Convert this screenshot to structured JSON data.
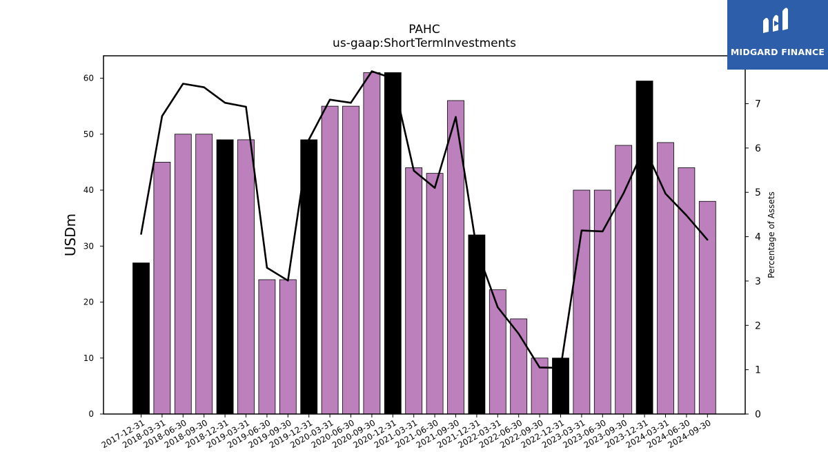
{
  "chart_data": {
    "type": "bar",
    "title": "PAHC",
    "subtitle": "us-gaap:ShortTermInvestments",
    "ylabel": "USDm",
    "y2label": "Percentage of Assets",
    "ylim": [
      0,
      64
    ],
    "y2lim": [
      0,
      8.08
    ],
    "yticks": [
      0,
      10,
      20,
      30,
      40,
      50,
      60
    ],
    "y2ticks": [
      0,
      1,
      2,
      3,
      4,
      5,
      6,
      7
    ],
    "categories": [
      "2017-12-31",
      "2018-03-31",
      "2018-06-30",
      "2018-09-30",
      "2018-12-31",
      "2019-03-31",
      "2019-06-30",
      "2019-09-30",
      "2019-12-31",
      "2020-03-31",
      "2020-06-30",
      "2020-09-30",
      "2020-12-31",
      "2021-03-31",
      "2021-06-30",
      "2021-09-30",
      "2021-12-31",
      "2022-03-31",
      "2022-06-30",
      "2022-09-30",
      "2022-12-31",
      "2023-03-31",
      "2023-06-30",
      "2023-09-30",
      "2023-12-31",
      "2024-03-31",
      "2024-06-30",
      "2024-09-30"
    ],
    "series": [
      {
        "type": "bar",
        "values": [
          27,
          45,
          50,
          50,
          49,
          49,
          24,
          24,
          49,
          55,
          55,
          61,
          61,
          44,
          43,
          56,
          32,
          22.2,
          17,
          10,
          10,
          40,
          40,
          48,
          59.5,
          48.5,
          44,
          38
        ],
        "colors": [
          "#000000",
          "#bc80bd",
          "#bc80bd",
          "#bc80bd",
          "#000000",
          "#bc80bd",
          "#bc80bd",
          "#bc80bd",
          "#000000",
          "#bc80bd",
          "#bc80bd",
          "#bc80bd",
          "#000000",
          "#bc80bd",
          "#bc80bd",
          "#bc80bd",
          "#000000",
          "#bc80bd",
          "#bc80bd",
          "#bc80bd",
          "#000000",
          "#bc80bd",
          "#bc80bd",
          "#bc80bd",
          "#000000",
          "#bc80bd",
          "#bc80bd",
          "#bc80bd"
        ]
      },
      {
        "type": "line",
        "axis": "right",
        "color": "#000000",
        "values": [
          4.06,
          6.72,
          7.45,
          7.37,
          7.02,
          6.93,
          3.3,
          3.01,
          6.19,
          7.09,
          7.02,
          7.73,
          7.57,
          5.49,
          5.1,
          6.7,
          3.71,
          2.41,
          1.81,
          1.05,
          1.04,
          4.14,
          4.12,
          4.98,
          6.01,
          4.97,
          4.48,
          3.93
        ]
      }
    ],
    "grid": false
  },
  "logo": {
    "text": "MIDGARD FINANCE",
    "bg": "#2d5eaa"
  }
}
